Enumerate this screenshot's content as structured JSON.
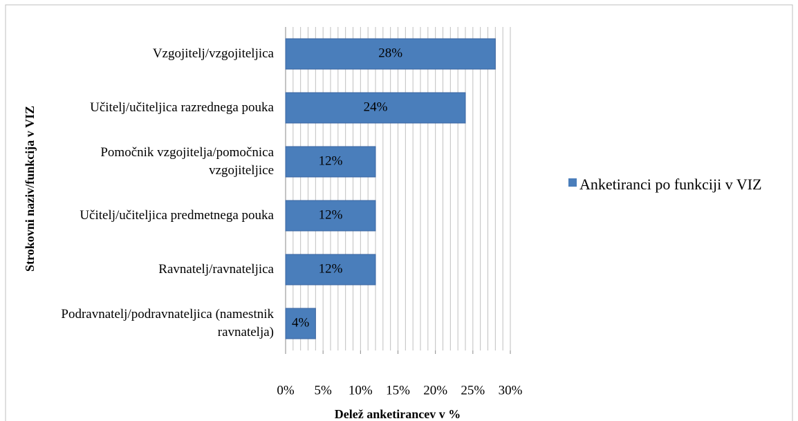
{
  "chart_data": {
    "type": "bar",
    "orientation": "horizontal",
    "x_label": "Delež anketirancev v %",
    "y_label": "Strokovni naziv/funkcija v VIZ",
    "categories": [
      "Vzgojitelj/vzgojiteljica",
      "Učitelj/učiteljica razrednega pouka",
      "Pomočnik vzgojitelja/pomočnica vzgojiteljice",
      "Učitelj/učiteljica predmetnega pouka",
      "Ravnatelj/ravnateljica",
      "Podravnatelj/podravnateljica (namestnik ravnatelja)"
    ],
    "series": [
      {
        "name": "Anketiranci po funkciji v VIZ",
        "color": "#4a7ebb",
        "values": [
          28,
          24,
          12,
          12,
          12,
          4
        ],
        "value_labels": [
          "28%",
          "24%",
          "12%",
          "12%",
          "12%",
          "4%"
        ]
      }
    ],
    "xlim": [
      0,
      30
    ],
    "xticks": [
      {
        "value": 0,
        "label": "0%"
      },
      {
        "value": 5,
        "label": "5%"
      },
      {
        "value": 10,
        "label": "10%"
      },
      {
        "value": 15,
        "label": "15%"
      },
      {
        "value": 20,
        "label": "20%"
      },
      {
        "value": 25,
        "label": "25%"
      },
      {
        "value": 30,
        "label": "30%"
      }
    ],
    "minor_xticks": [
      0,
      1,
      2,
      3,
      4,
      5,
      6,
      7,
      8,
      9,
      10,
      11,
      12,
      13,
      14,
      15,
      16,
      17,
      18,
      19,
      20,
      21,
      22,
      23,
      24,
      25,
      26,
      27,
      28,
      29,
      30
    ],
    "grid": true,
    "legend": "right"
  }
}
